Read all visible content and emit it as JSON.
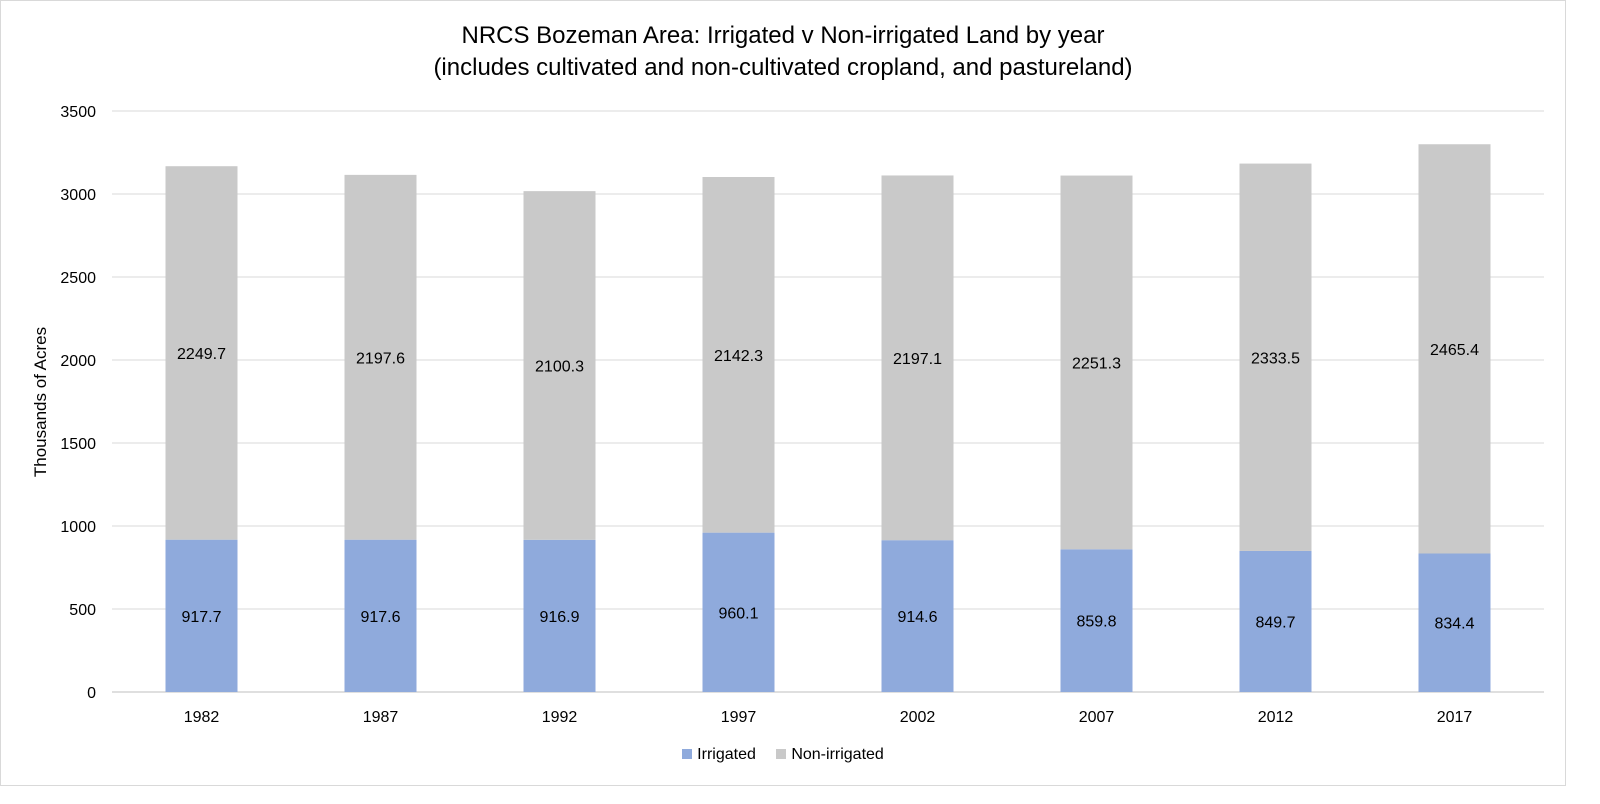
{
  "chart_data": {
    "type": "bar",
    "stacked": true,
    "title": "NRCS Bozeman Area: Irrigated v Non-irrigated Land by year",
    "subtitle": "(includes cultivated and non-cultivated cropland, and pastureland)",
    "xlabel": "",
    "ylabel": "Thousands of Acres",
    "ylim": [
      0,
      3500
    ],
    "yticks": [
      "0",
      "500",
      "1000",
      "1500",
      "2000",
      "2500",
      "3000",
      "3500"
    ],
    "categories": [
      "1982",
      "1987",
      "1992",
      "1997",
      "2002",
      "2007",
      "2012",
      "2017"
    ],
    "series": [
      {
        "name": "Irrigated",
        "color": "#8faadc",
        "values": [
          917.7,
          917.6,
          916.9,
          960.1,
          914.6,
          859.8,
          849.7,
          834.4
        ],
        "labels": [
          "917.7",
          "917.6",
          "916.9",
          "960.1",
          "914.6",
          "859.8",
          "849.7",
          "834.4"
        ]
      },
      {
        "name": "Non-irrigated",
        "color": "#c9c9c9",
        "values": [
          2249.7,
          2197.6,
          2100.3,
          2142.3,
          2197.1,
          2251.3,
          2333.5,
          2465.4
        ],
        "labels": [
          "2249.7",
          "2197.6",
          "2100.3",
          "2142.3",
          "2197.1",
          "2251.3",
          "2333.5",
          "2465.4"
        ]
      }
    ],
    "grid": true,
    "legend": "bottom"
  }
}
